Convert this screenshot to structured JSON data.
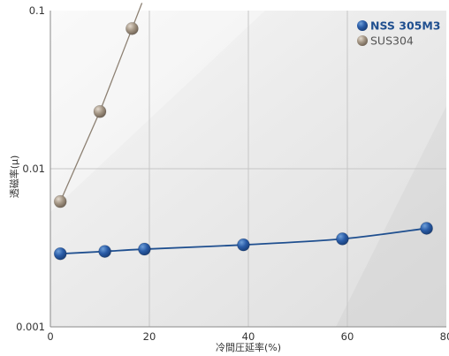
{
  "chart_data": {
    "type": "line",
    "xlabel": "冷間圧延率(%)",
    "ylabel": "透磁率(μ)",
    "xlim": [
      0,
      80
    ],
    "ylim": [
      0.001,
      0.1
    ],
    "yscale": "log",
    "x_ticks": [
      "0",
      "20",
      "40",
      "60",
      "80"
    ],
    "y_ticks": [
      "0.001",
      "0.01",
      "0.1"
    ],
    "grid": true,
    "legend_position": "top-right",
    "series": [
      {
        "name": "NSS 305M3",
        "color": "#2a5ca7",
        "x": [
          2,
          11,
          19,
          39,
          59,
          76
        ],
        "y": [
          0.0029,
          0.003,
          0.0031,
          0.0033,
          0.0036,
          0.0042
        ]
      },
      {
        "name": "SUS304",
        "color": "#a39584",
        "x": [
          2,
          10,
          16.5
        ],
        "y": [
          0.0062,
          0.023,
          0.077
        ],
        "line_extends_to_x": 18.5
      }
    ]
  }
}
